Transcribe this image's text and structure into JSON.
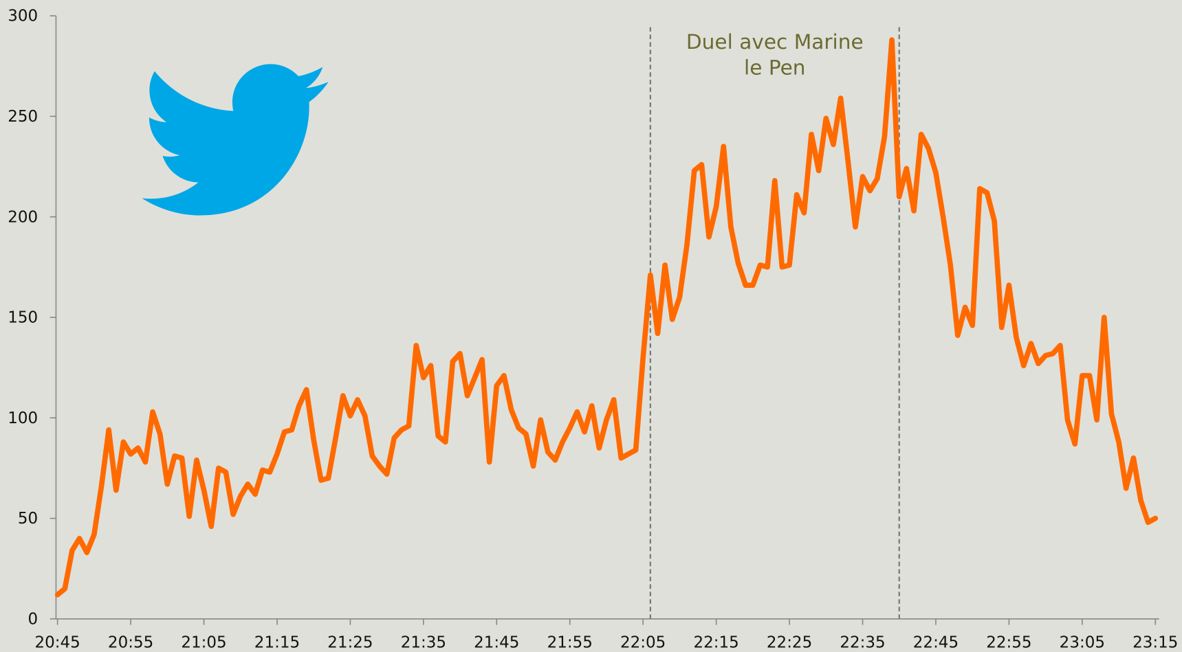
{
  "chart_data": {
    "type": "line",
    "x": [
      "20:45",
      "20:46",
      "20:47",
      "20:48",
      "20:49",
      "20:50",
      "20:51",
      "20:52",
      "20:53",
      "20:54",
      "20:55",
      "20:56",
      "20:57",
      "20:58",
      "20:59",
      "21:00",
      "21:01",
      "21:02",
      "21:03",
      "21:04",
      "21:05",
      "21:06",
      "21:07",
      "21:08",
      "21:09",
      "21:10",
      "21:11",
      "21:12",
      "21:13",
      "21:14",
      "21:15",
      "21:16",
      "21:17",
      "21:18",
      "21:19",
      "21:20",
      "21:21",
      "21:22",
      "21:23",
      "21:24",
      "21:25",
      "21:26",
      "21:27",
      "21:28",
      "21:29",
      "21:30",
      "21:31",
      "21:32",
      "21:33",
      "21:34",
      "21:35",
      "21:36",
      "21:37",
      "21:38",
      "21:39",
      "21:40",
      "21:41",
      "21:42",
      "21:43",
      "21:44",
      "21:45",
      "21:46",
      "21:47",
      "21:48",
      "21:49",
      "21:50",
      "21:51",
      "21:52",
      "21:53",
      "21:54",
      "21:55",
      "21:56",
      "21:57",
      "21:58",
      "21:59",
      "22:00",
      "22:01",
      "22:02",
      "22:03",
      "22:04",
      "22:05",
      "22:06",
      "22:07",
      "22:08",
      "22:09",
      "22:10",
      "22:11",
      "22:12",
      "22:13",
      "22:14",
      "22:15",
      "22:16",
      "22:17",
      "22:18",
      "22:19",
      "22:20",
      "22:21",
      "22:22",
      "22:23",
      "22:24",
      "22:25",
      "22:26",
      "22:27",
      "22:28",
      "22:29",
      "22:30",
      "22:31",
      "22:32",
      "22:33",
      "22:34",
      "22:35",
      "22:36",
      "22:37",
      "22:38",
      "22:39",
      "22:40",
      "22:41",
      "22:42",
      "22:43",
      "22:44",
      "22:45",
      "22:46",
      "22:47",
      "22:48",
      "22:49",
      "22:50",
      "22:51",
      "22:52",
      "22:53",
      "22:54",
      "22:55",
      "22:56",
      "22:57",
      "22:58",
      "22:59",
      "23:00",
      "23:01",
      "23:02",
      "23:03",
      "23:04",
      "23:05",
      "23:06",
      "23:07",
      "23:08",
      "23:09",
      "23:10",
      "23:11",
      "23:12",
      "23:13",
      "23:14",
      "23:15"
    ],
    "series": [
      {
        "color": "#ff6a00",
        "values": [
          12,
          15,
          34,
          40,
          33,
          42,
          66,
          94,
          64,
          88,
          82,
          85,
          78,
          103,
          92,
          67,
          81,
          80,
          51,
          79,
          64,
          46,
          75,
          73,
          52,
          61,
          67,
          62,
          74,
          73,
          82,
          93,
          94,
          106,
          114,
          89,
          69,
          70,
          90,
          111,
          101,
          109,
          101,
          81,
          76,
          72,
          90,
          94,
          96,
          136,
          120,
          126,
          91,
          88,
          128,
          132,
          111,
          120,
          129,
          78,
          116,
          121,
          104,
          95,
          92,
          76,
          99,
          83,
          79,
          88,
          95,
          103,
          93,
          106,
          85,
          99,
          109,
          80,
          82,
          84,
          130,
          171,
          142,
          176,
          149,
          160,
          186,
          223,
          226,
          190,
          205,
          235,
          195,
          177,
          166,
          166,
          176,
          175,
          218,
          175,
          176,
          211,
          202,
          241,
          223,
          249,
          236,
          259,
          228,
          195,
          220,
          213,
          219,
          240,
          288,
          210,
          224,
          203,
          241,
          234,
          222,
          200,
          176,
          141,
          155,
          146,
          214,
          212,
          198,
          145,
          166,
          140,
          126,
          137,
          127,
          131,
          132,
          136,
          99,
          87,
          121,
          121,
          99,
          150,
          102,
          88,
          65,
          80,
          59,
          48,
          50
        ]
      }
    ],
    "ylim": [
      0,
      300
    ],
    "yticks": [
      0,
      50,
      100,
      150,
      200,
      250,
      300
    ],
    "xticks": [
      "20:45",
      "20:55",
      "21:05",
      "21:15",
      "21:25",
      "21:35",
      "21:45",
      "21:55",
      "22:05",
      "22:15",
      "22:25",
      "22:35",
      "22:45",
      "22:55",
      "23:05",
      "23:15"
    ],
    "annotation": {
      "lines": [
        "Duel avec Marine",
        "le Pen"
      ],
      "x": [
        "22:06",
        "22:40"
      ]
    }
  }
}
